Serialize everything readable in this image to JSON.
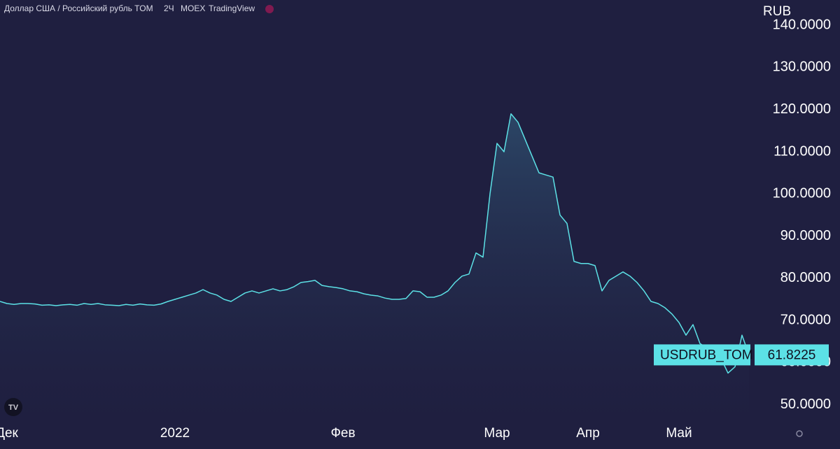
{
  "chart_data": {
    "type": "area",
    "title": "Доллар США / Российский рубль TOM",
    "interval": "2Ч",
    "exchange": "MOEX",
    "source": "TradingView",
    "y_axis_label": "RUB",
    "categories": [
      null,
      "Дек",
      null,
      null,
      null,
      null,
      null,
      null,
      null,
      null,
      null,
      null,
      null,
      null,
      null,
      null,
      null,
      null,
      null,
      null,
      null,
      null,
      null,
      null,
      null,
      "2022",
      null,
      null,
      null,
      null,
      null,
      null,
      null,
      null,
      null,
      null,
      null,
      null,
      null,
      null,
      null,
      null,
      null,
      null,
      null,
      null,
      null,
      null,
      null,
      "Фев",
      null,
      null,
      null,
      null,
      null,
      null,
      null,
      null,
      null,
      null,
      null,
      null,
      null,
      null,
      null,
      null,
      null,
      null,
      null,
      null,
      null,
      "Мар",
      null,
      null,
      null,
      null,
      null,
      null,
      null,
      null,
      null,
      null,
      null,
      null,
      "Апр",
      null,
      null,
      null,
      null,
      null,
      null,
      null,
      null,
      null,
      null,
      null,
      null,
      "Май",
      null,
      null,
      null,
      null,
      null,
      null,
      null,
      null,
      null,
      null
    ],
    "series": [
      {
        "name": "USDRUB_TOM",
        "color": "#5ce1e6",
        "values": [
          74.5,
          74,
          73.8,
          74,
          74,
          73.9,
          73.6,
          73.7,
          73.5,
          73.7,
          73.8,
          73.6,
          74,
          73.8,
          74,
          73.7,
          73.6,
          73.5,
          73.8,
          73.6,
          73.9,
          73.7,
          73.6,
          73.9,
          74.5,
          75,
          75.5,
          76,
          76.5,
          77.3,
          76.5,
          76,
          75,
          74.5,
          75.5,
          76.5,
          77,
          76.5,
          77,
          77.5,
          77,
          77.3,
          78,
          79,
          79.2,
          79.5,
          78.3,
          78,
          77.8,
          77.5,
          77,
          76.8,
          76.3,
          76,
          75.8,
          75.3,
          75,
          75,
          75.2,
          77,
          76.8,
          75.5,
          75.5,
          76,
          77,
          79,
          80.5,
          81,
          86,
          85,
          100,
          112,
          110,
          119,
          117,
          113,
          109,
          105,
          104.5,
          104,
          95,
          93,
          84,
          83.5,
          83.5,
          83,
          77,
          79.5,
          80.5,
          81.5,
          80.5,
          79,
          77,
          74.5,
          74,
          73,
          71.5,
          69.5,
          66.5,
          69,
          64.5,
          63.5,
          62,
          61,
          57.5,
          59,
          66.5,
          61.8225
        ]
      }
    ],
    "ylim": [
      45.8,
      146
    ],
    "yticks": [
      {
        "value": 50,
        "label": "50.0000"
      },
      {
        "value": 60,
        "label": "60.0000"
      },
      {
        "value": 70,
        "label": "70.0000"
      },
      {
        "value": 80,
        "label": "80.0000"
      },
      {
        "value": 90,
        "label": "90.0000"
      },
      {
        "value": 100,
        "label": "100.0000"
      },
      {
        "value": 110,
        "label": "110.0000"
      },
      {
        "value": 120,
        "label": "120.0000"
      },
      {
        "value": 130,
        "label": "130.0000"
      },
      {
        "value": 140,
        "label": "140.0000"
      }
    ]
  }
}
